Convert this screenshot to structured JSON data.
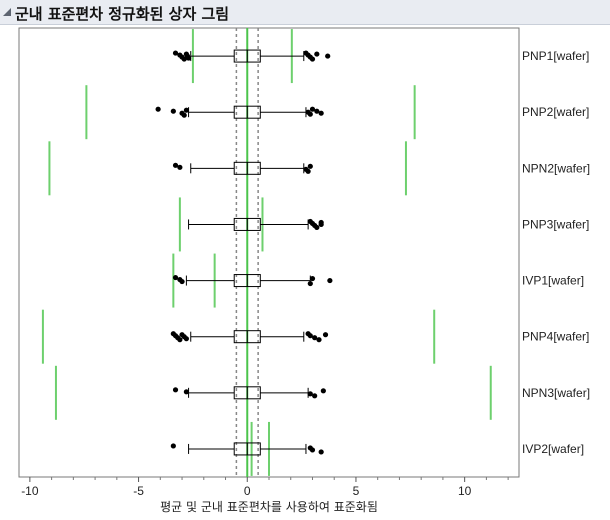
{
  "title": "군내 표준편차 정규화된 상자 그림",
  "chart_data": {
    "type": "box",
    "xlabel": "평균 및 군내 표준편차를 사용하여 표준화됨",
    "xlim": [
      -10.5,
      12.5
    ],
    "xticks": [
      -10,
      -5,
      0,
      5,
      10
    ],
    "grid": false,
    "reference_lines": {
      "center": 0,
      "dashed": [
        -0.5,
        0.5
      ],
      "center_color": "#4bc44b",
      "dashed_color": "#888888"
    },
    "limit_color": "#6dd06d",
    "series": [
      {
        "name": "PNP1[wafer]",
        "q1": -0.6,
        "median": 0.0,
        "q3": 0.6,
        "whisker_low": -2.6,
        "whisker_high": 2.6,
        "limits": [
          -2.5,
          2.05
        ],
        "outliers": [
          -3.3,
          -3.1,
          -3.0,
          -2.9,
          -2.8,
          -2.75,
          -2.7,
          2.7,
          2.8,
          2.9,
          3.0,
          3.2,
          3.7
        ]
      },
      {
        "name": "PNP2[wafer]",
        "q1": -0.6,
        "median": 0.0,
        "q3": 0.6,
        "whisker_low": -2.7,
        "whisker_high": 2.7,
        "limits": [
          -7.4,
          7.7
        ],
        "outliers": [
          -4.1,
          -3.4,
          -3.0,
          -2.9,
          -2.8,
          2.8,
          2.9,
          3.0,
          3.2,
          3.4
        ]
      },
      {
        "name": "NPN2[wafer]",
        "q1": -0.6,
        "median": 0.0,
        "q3": 0.6,
        "whisker_low": -2.6,
        "whisker_high": 2.6,
        "limits": [
          -9.1,
          7.3
        ],
        "outliers": [
          -3.3,
          -3.1,
          2.7,
          2.8,
          2.9
        ]
      },
      {
        "name": "PNP3[wafer]",
        "q1": -0.6,
        "median": 0.0,
        "q3": 0.6,
        "whisker_low": -2.7,
        "whisker_high": 2.8,
        "limits": [
          -3.1,
          0.7
        ],
        "outliers": [
          2.9,
          3.0,
          3.1,
          3.2,
          3.4,
          3.4
        ]
      },
      {
        "name": "IVP1[wafer]",
        "q1": -0.6,
        "median": 0.0,
        "q3": 0.6,
        "whisker_low": -2.8,
        "whisker_high": 2.9,
        "limits": [
          -3.4,
          -1.5
        ],
        "outliers": [
          -3.3,
          -3.1,
          -3.0,
          2.9,
          3.0,
          3.8
        ]
      },
      {
        "name": "PNP4[wafer]",
        "q1": -0.6,
        "median": 0.0,
        "q3": 0.6,
        "whisker_low": -2.6,
        "whisker_high": 2.6,
        "limits": [
          -9.4,
          8.6
        ],
        "outliers": [
          -3.4,
          -3.3,
          -3.2,
          -3.1,
          -3.0,
          -2.9,
          -2.8,
          2.8,
          2.9,
          3.1,
          3.3,
          3.6
        ]
      },
      {
        "name": "NPN3[wafer]",
        "q1": -0.6,
        "median": 0.0,
        "q3": 0.6,
        "whisker_low": -2.7,
        "whisker_high": 2.8,
        "limits": [
          -8.8,
          11.2
        ],
        "outliers": [
          -3.3,
          -2.8,
          2.9,
          3.1,
          3.5
        ]
      },
      {
        "name": "IVP2[wafer]",
        "q1": -0.6,
        "median": 0.0,
        "q3": 0.6,
        "whisker_low": -2.7,
        "whisker_high": 2.7,
        "limits": [
          0.2,
          1.0
        ],
        "outliers": [
          -3.4,
          2.9,
          3.0,
          3.4
        ]
      }
    ]
  }
}
